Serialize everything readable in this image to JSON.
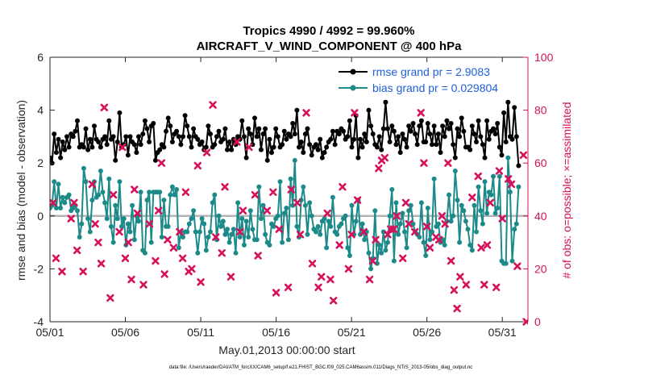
{
  "chart_data": {
    "type": "line",
    "title": "Tropics 4990 / 4992 = 99.960%",
    "subtitle": "AIRCRAFT_V_WIND_COMPONENT @ 400 hPa",
    "xlabel": "May.01,2013 00:00:00 start",
    "ylabel": "rmse and bias (model - observation)",
    "y2label": "# of obs: o=possible; ×=assimilated",
    "xlim": [
      0,
      31.7
    ],
    "ylim": [
      -4,
      6
    ],
    "y2lim": [
      0,
      100
    ],
    "x_tick_values": [
      0,
      5,
      10,
      15,
      20,
      25,
      30
    ],
    "x_tick_labels": [
      "05/01",
      "05/06",
      "05/11",
      "05/16",
      "05/21",
      "05/26",
      "05/31"
    ],
    "y_ticks": [
      -4,
      -2,
      0,
      2,
      4,
      6
    ],
    "y2_ticks": [
      0,
      20,
      40,
      60,
      80,
      100
    ],
    "zero_line": 0,
    "footer": "data file: /Users/raeder/DAI/ATM_forcXX/CAM6_setup/f.e21.FHIST_BGC.f09_025.CAM6assim.011/Diags_NTrS_2013-05/obs_diag_output.nc",
    "series": [
      {
        "name": "rmse",
        "legend": "rmse grand pr = 2.9083",
        "color": "#000000",
        "values": [
          2.2,
          2.0,
          3.1,
          2.4,
          2.9,
          2.2,
          2.8,
          2.5,
          3.0,
          2.6,
          3.1,
          3.0,
          3.2,
          3.6,
          2.6,
          2.7,
          2.6,
          3.3,
          2.5,
          2.9,
          2.6,
          3.4,
          2.9,
          2.8,
          2.6,
          2.9,
          3.0,
          2.7,
          3.6,
          2.9,
          3.0,
          2.1,
          2.8,
          3.9,
          2.6,
          2.7,
          3.0,
          2.3,
          3.0,
          2.8,
          2.7,
          2.4,
          3.0,
          2.7,
          3.1,
          3.6,
          3.3,
          2.8,
          3.4,
          3.5,
          2.1,
          2.4,
          2.5,
          2.7,
          2.6,
          3.2,
          3.7,
          3.4,
          2.8,
          3.1,
          3.2,
          3.0,
          2.7,
          3.0,
          3.8,
          3.4,
          3.0,
          2.6,
          3.3,
          3.0,
          2.9,
          2.7,
          2.8,
          2.5,
          2.6,
          3.4,
          3.1,
          2.6,
          2.7,
          3.0,
          3.2,
          2.8,
          2.9,
          3.3,
          2.5,
          2.8,
          2.5,
          2.9,
          2.7,
          3.0,
          2.9,
          3.6,
          3.0,
          2.2,
          3.3,
          3.1,
          2.7,
          3.7,
          3.0,
          3.3,
          2.5,
          3.1,
          3.3,
          2.1,
          2.9,
          2.4,
          2.6,
          3.3,
          3.0,
          2.6,
          2.7,
          3.2,
          2.9,
          3.1,
          3.0,
          3.5,
          3.1,
          4.0,
          2.6,
          2.8,
          2.4,
          3.1,
          3.3,
          2.7,
          2.3,
          2.6,
          2.7,
          2.5,
          2.9,
          2.2,
          2.4,
          2.6,
          2.8,
          2.9,
          3.2,
          2.7,
          3.2,
          3.1,
          3.3,
          3.2,
          2.9,
          3.0,
          3.6,
          2.6,
          2.9,
          3.8,
          2.2,
          2.9,
          2.6,
          3.1,
          2.8,
          4.0,
          3.4,
          3.1,
          2.7,
          2.6,
          3.0,
          2.5,
          3.3,
          4.3,
          3.3,
          2.8,
          3.4,
          3.2,
          2.7,
          3.0,
          2.4,
          3.1,
          2.9,
          2.6,
          3.4,
          3.2,
          3.5,
          3.1,
          2.7,
          3.4,
          3.6,
          2.8,
          2.8,
          3.5,
          3.1,
          2.7,
          3.4,
          2.7,
          3.1,
          2.4,
          3.4,
          3.0,
          3.6,
          3.3,
          3.5,
          2.7,
          2.2,
          3.3,
          3.0,
          3.7,
          3.2,
          2.6,
          2.6,
          2.5,
          3.4,
          3.1,
          2.8,
          3.6,
          3.0,
          2.7,
          2.2,
          3.6,
          2.9,
          3.2,
          3.3,
          3.1,
          3.5,
          2.6,
          2.3,
          3.9,
          2.8,
          4.3,
          3.0,
          2.9,
          4.1,
          3.0,
          1.9
        ],
        "values_note": "the line starts on 05/01 and is drawn at an even spacing of 0.14 of a day"
      },
      {
        "name": "bias",
        "legend": "bias grand pr = 0.029804",
        "color": "#1d8a8a",
        "values": [
          0.3,
          0.4,
          1.3,
          0.3,
          1.2,
          0.3,
          0.7,
          0.5,
          0.7,
          0.8,
          0.2,
          0.3,
          0.4,
          0.2,
          -0.8,
          -0.3,
          1.8,
          1.3,
          -0.1,
          -0.6,
          0.6,
          1.3,
          0.7,
          0.8,
          1.7,
          0.9,
          0.5,
          -0.1,
          1.4,
          -0.4,
          -1.0,
          0.4,
          -0.1,
          1.3,
          -0.4,
          -0.1,
          -1.1,
          -0.3,
          -0.6,
          0.4,
          -0.9,
          0.0,
          -0.2,
          0.9,
          -1.3,
          -1.4,
          0.6,
          0.9,
          -1.0,
          0.9,
          0.9,
          0.9,
          0.9,
          -0.8,
          0.6,
          -0.4,
          -0.4,
          0.8,
          1.1,
          0.8,
          1.0,
          -1.2,
          -0.6,
          -0.8,
          -0.6,
          -0.6,
          -0.3,
          -0.1,
          0.2,
          -0.6,
          -1.4,
          -0.6,
          -0.1,
          -0.3,
          -1.3,
          -0.8,
          -0.6,
          0.5,
          0.8,
          -0.9,
          0.0,
          -0.4,
          -0.2,
          -0.7,
          -0.5,
          -1.0,
          -0.7,
          -0.5,
          -1.4,
          0.5,
          -0.8,
          -0.1,
          -1.1,
          -0.2,
          -0.8,
          0.2,
          -0.5,
          -0.9,
          -0.9,
          1.1,
          -0.1,
          0.4,
          -0.7,
          -1.0,
          -1.1,
          -0.3,
          -0.4,
          -0.1,
          0.0,
          1.3,
          -1.0,
          0.1,
          0.3,
          -0.9,
          1.4,
          0.4,
          2.1,
          -0.4,
          -0.8,
          0.6,
          1.1,
          0.4,
          -0.7,
          0.5,
          0.0,
          -0.5,
          -0.6,
          -0.4,
          -0.7,
          -0.2,
          -0.1,
          -1.2,
          -0.2,
          -0.4,
          0.7,
          -0.6,
          -0.7,
          -0.4,
          -0.3,
          -0.1,
          0.0,
          -1.2,
          -1.5,
          0.4,
          -0.7,
          -0.2,
          0.6,
          -0.7,
          -0.3,
          -0.9,
          -0.6,
          -1.4,
          -2.0,
          -1.6,
          0.2,
          -1.8,
          -1.1,
          -1.4,
          -0.6,
          -1.3,
          -1.0,
          0.0,
          1.0,
          -1.7,
          0.5,
          -0.7,
          -0.3,
          0.1,
          -0.6,
          -1.2,
          0.2,
          0.4,
          -0.3,
          -0.6,
          -0.7,
          -0.8,
          0.5,
          -1.0,
          -1.5,
          0.3,
          -0.9,
          -0.6,
          1.4,
          -0.4,
          -0.3,
          -1.0,
          -0.9,
          -1.1,
          -0.2,
          0.8,
          -0.2,
          0.0,
          1.7,
          0.6,
          -1.0,
          0.4,
          0.2,
          -0.2,
          -0.5,
          -1.1,
          -1.3,
          0.4,
          -0.6,
          1.1,
          0.2,
          -0.3,
          1.3,
          0.1,
          0.9,
          0.8,
          1.5,
          0.1,
          0.3,
          1.5,
          -1.7,
          -1.8,
          -1.8,
          2.2,
          0.9,
          -1.7,
          -0.5,
          -0.3,
          1.1
        ],
        "values_note": "the line starts on 05/01 and is drawn at an even spacing of 0.14 of a day"
      },
      {
        "name": "obs possible / assimilated",
        "axis": "right",
        "color": "#d4115a",
        "points": [
          [
            0.2,
            45
          ],
          [
            0.4,
            24
          ],
          [
            0.8,
            19
          ],
          [
            1.4,
            39
          ],
          [
            1.6,
            45
          ],
          [
            1.8,
            27
          ],
          [
            2.2,
            19
          ],
          [
            2.8,
            52
          ],
          [
            3.0,
            37
          ],
          [
            3.2,
            30
          ],
          [
            3.4,
            22
          ],
          [
            3.6,
            81
          ],
          [
            4.0,
            9
          ],
          [
            4.2,
            48
          ],
          [
            4.6,
            34
          ],
          [
            4.8,
            66
          ],
          [
            5.0,
            24
          ],
          [
            5.2,
            30
          ],
          [
            5.4,
            16
          ],
          [
            5.6,
            50
          ],
          [
            5.8,
            41
          ],
          [
            6.2,
            14
          ],
          [
            6.6,
            37
          ],
          [
            7.0,
            23
          ],
          [
            7.2,
            42
          ],
          [
            7.4,
            60
          ],
          [
            7.6,
            18
          ],
          [
            7.8,
            31
          ],
          [
            8.2,
            28
          ],
          [
            8.6,
            34
          ],
          [
            8.8,
            24
          ],
          [
            9.0,
            49
          ],
          [
            9.2,
            19
          ],
          [
            9.4,
            20
          ],
          [
            9.8,
            59
          ],
          [
            10.0,
            15
          ],
          [
            10.4,
            64
          ],
          [
            10.8,
            82
          ],
          [
            11.0,
            32
          ],
          [
            11.4,
            26
          ],
          [
            11.6,
            51
          ],
          [
            12.0,
            17
          ],
          [
            12.4,
            68
          ],
          [
            12.6,
            34
          ],
          [
            12.8,
            42
          ],
          [
            13.2,
            66
          ],
          [
            13.6,
            48
          ],
          [
            13.8,
            25
          ],
          [
            14.4,
            42
          ],
          [
            14.8,
            49
          ],
          [
            15.0,
            11
          ],
          [
            15.2,
            35
          ],
          [
            15.8,
            13
          ],
          [
            16.0,
            50
          ],
          [
            16.4,
            45
          ],
          [
            16.6,
            33
          ],
          [
            17.0,
            79
          ],
          [
            17.4,
            22
          ],
          [
            17.8,
            13
          ],
          [
            18.0,
            17
          ],
          [
            18.4,
            41
          ],
          [
            18.6,
            16
          ],
          [
            18.8,
            8
          ],
          [
            19.2,
            29
          ],
          [
            19.4,
            51
          ],
          [
            19.8,
            20
          ],
          [
            20.0,
            33
          ],
          [
            20.2,
            79
          ],
          [
            20.4,
            46
          ],
          [
            20.8,
            34
          ],
          [
            21.2,
            16
          ],
          [
            21.4,
            23
          ],
          [
            21.6,
            31
          ],
          [
            21.8,
            58
          ],
          [
            22.0,
            61
          ],
          [
            22.2,
            62
          ],
          [
            22.4,
            33
          ],
          [
            22.6,
            35
          ],
          [
            22.8,
            35
          ],
          [
            23.0,
            40
          ],
          [
            23.4,
            24
          ],
          [
            23.6,
            45
          ],
          [
            23.8,
            37
          ],
          [
            24.2,
            34
          ],
          [
            24.6,
            79
          ],
          [
            24.8,
            60
          ],
          [
            25.0,
            36
          ],
          [
            25.2,
            28
          ],
          [
            25.6,
            32
          ],
          [
            25.8,
            31
          ],
          [
            26.0,
            40
          ],
          [
            26.2,
            37
          ],
          [
            26.4,
            60
          ],
          [
            26.6,
            23
          ],
          [
            26.8,
            12
          ],
          [
            27.0,
            5
          ],
          [
            27.2,
            17
          ],
          [
            27.6,
            14
          ],
          [
            28.0,
            47
          ],
          [
            28.4,
            55
          ],
          [
            28.6,
            28
          ],
          [
            28.8,
            14
          ],
          [
            29.0,
            29
          ],
          [
            29.2,
            45
          ],
          [
            29.6,
            13
          ],
          [
            29.8,
            57
          ],
          [
            30.0,
            39
          ],
          [
            30.4,
            54
          ],
          [
            30.6,
            52
          ],
          [
            31.0,
            21
          ],
          [
            31.4,
            63
          ],
          [
            31.6,
            0
          ]
        ]
      }
    ]
  }
}
